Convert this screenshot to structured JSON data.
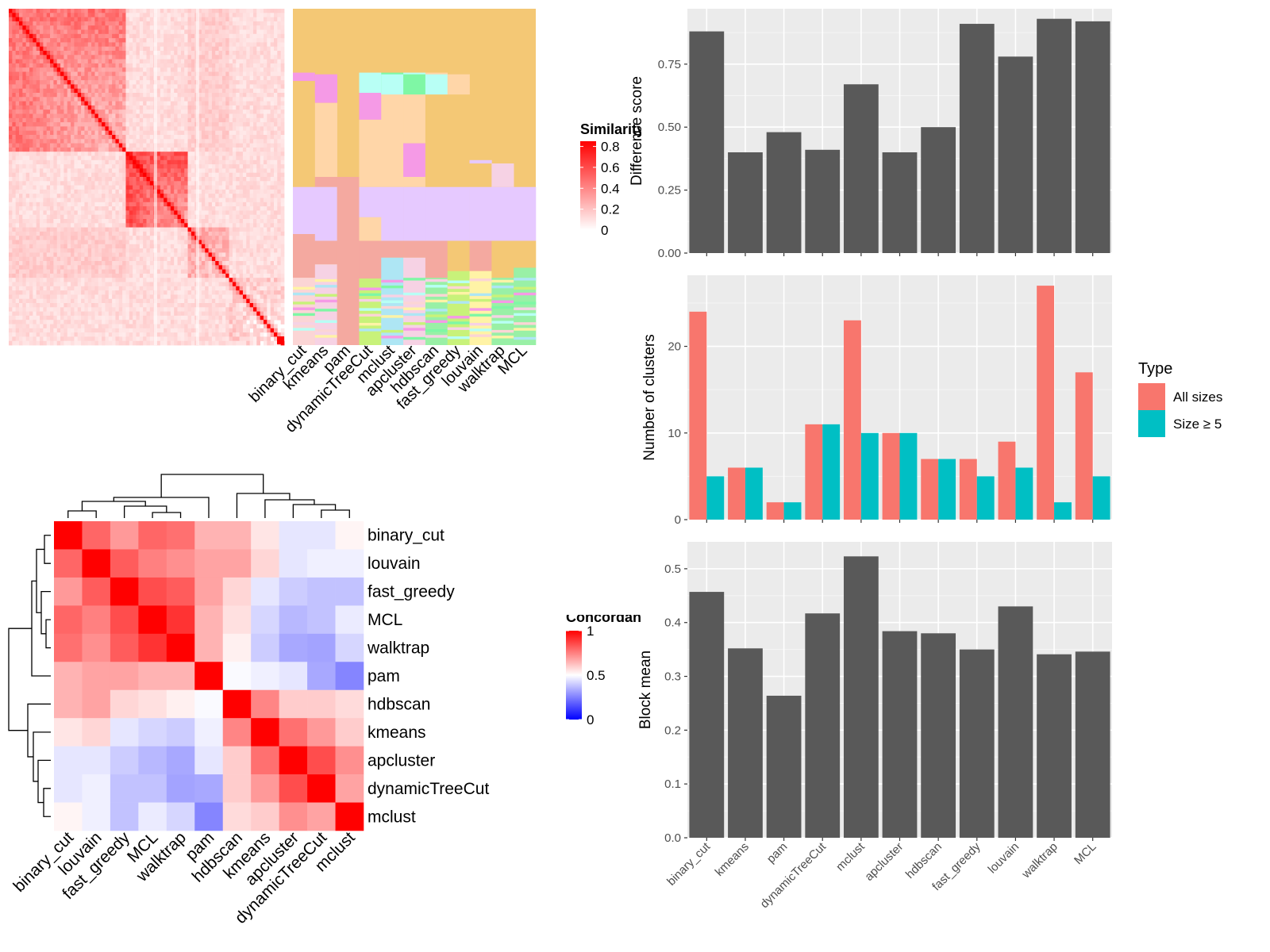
{
  "chart_data": [
    {
      "type": "heatmap",
      "panel": "similarity-heatmap-with-cluster-annotations",
      "columns": [
        "binary_cut",
        "kmeans",
        "pam",
        "dynamicTreeCut",
        "mclust",
        "apcluster",
        "hdbscan",
        "fast_greedy",
        "louvain",
        "walktrap",
        "MCL"
      ],
      "legend": {
        "title": "Similarity",
        "ticks": [
          "0.8",
          "0.6",
          "0.4",
          "0.2",
          "0"
        ]
      },
      "blocks": [
        {
          "start": 0.0,
          "end": 0.43,
          "intensity": 0.55
        },
        {
          "start": 0.43,
          "end": 0.65,
          "intensity": 0.7
        },
        {
          "start": 0.65,
          "end": 0.8,
          "intensity": 0.35
        },
        {
          "start": 0.8,
          "end": 1.0,
          "intensity": 0.2
        }
      ],
      "annotation_palette": [
        "#F4C875",
        "#E6C9FF",
        "#F4A9A0",
        "#FBD5D5",
        "#F6D2E4",
        "#C8F27A",
        "#99F0A6",
        "#AEE6F4",
        "#FFF3A6",
        "#F59AE6",
        "#B8FFF5",
        "#FFD6A8",
        "#7FF7A5"
      ]
    },
    {
      "type": "heatmap",
      "panel": "concordance-heatmap",
      "rows": [
        "binary_cut",
        "louvain",
        "fast_greedy",
        "MCL",
        "walktrap",
        "pam",
        "hdbscan",
        "kmeans",
        "apcluster",
        "dynamicTreeCut",
        "mclust"
      ],
      "columns": [
        "binary_cut",
        "louvain",
        "fast_greedy",
        "MCL",
        "walktrap",
        "pam",
        "hdbscan",
        "kmeans",
        "apcluster",
        "dynamicTreeCut",
        "mclust"
      ],
      "values": [
        [
          1.0,
          0.8,
          0.7,
          0.8,
          0.78,
          0.65,
          0.65,
          0.55,
          0.45,
          0.45,
          0.52
        ],
        [
          0.8,
          1.0,
          0.82,
          0.75,
          0.72,
          0.68,
          0.68,
          0.58,
          0.45,
          0.47,
          0.47
        ],
        [
          0.7,
          0.82,
          1.0,
          0.85,
          0.82,
          0.68,
          0.58,
          0.45,
          0.4,
          0.38,
          0.38
        ],
        [
          0.8,
          0.75,
          0.85,
          1.0,
          0.9,
          0.65,
          0.56,
          0.42,
          0.36,
          0.38,
          0.46
        ],
        [
          0.78,
          0.72,
          0.82,
          0.9,
          1.0,
          0.65,
          0.53,
          0.4,
          0.33,
          0.32,
          0.42
        ],
        [
          0.65,
          0.68,
          0.68,
          0.65,
          0.65,
          1.0,
          0.49,
          0.47,
          0.45,
          0.33,
          0.26
        ],
        [
          0.65,
          0.68,
          0.58,
          0.56,
          0.53,
          0.49,
          1.0,
          0.74,
          0.6,
          0.6,
          0.57
        ],
        [
          0.55,
          0.58,
          0.45,
          0.42,
          0.4,
          0.47,
          0.74,
          1.0,
          0.78,
          0.7,
          0.6
        ],
        [
          0.45,
          0.45,
          0.4,
          0.36,
          0.33,
          0.45,
          0.6,
          0.78,
          1.0,
          0.85,
          0.72
        ],
        [
          0.45,
          0.47,
          0.38,
          0.38,
          0.32,
          0.33,
          0.6,
          0.7,
          0.85,
          1.0,
          0.68
        ],
        [
          0.52,
          0.47,
          0.38,
          0.46,
          0.42,
          0.26,
          0.57,
          0.6,
          0.72,
          0.68,
          1.0
        ]
      ],
      "legend": {
        "title": "Concordance",
        "ticks": [
          "1",
          "0.5",
          "0"
        ]
      }
    },
    {
      "type": "bar",
      "panel": "difference-score",
      "categories": [
        "binary_cut",
        "kmeans",
        "pam",
        "dynamicTreeCut",
        "mclust",
        "apcluster",
        "hdbscan",
        "fast_greedy",
        "louvain",
        "walktrap",
        "MCL"
      ],
      "values": [
        0.88,
        0.4,
        0.48,
        0.41,
        0.67,
        0.4,
        0.5,
        0.91,
        0.78,
        0.93,
        0.92
      ],
      "ylabel": "Difference score",
      "ylim": [
        0,
        0.97
      ],
      "yticks": [
        "0.00",
        "0.25",
        "0.50",
        "0.75"
      ],
      "ytick_values": [
        0,
        0.25,
        0.5,
        0.75
      ]
    },
    {
      "type": "bar",
      "panel": "number-of-clusters",
      "categories": [
        "binary_cut",
        "kmeans",
        "pam",
        "dynamicTreeCut",
        "mclust",
        "apcluster",
        "hdbscan",
        "fast_greedy",
        "louvain",
        "walktrap",
        "MCL"
      ],
      "series": [
        {
          "name": "All sizes",
          "color": "#F8766D",
          "values": [
            24,
            6,
            2,
            11,
            23,
            10,
            7,
            7,
            9,
            27,
            17
          ]
        },
        {
          "name": "Size ≥ 5",
          "color": "#00BFC4",
          "values": [
            5,
            6,
            2,
            11,
            10,
            10,
            7,
            5,
            6,
            2,
            5
          ]
        }
      ],
      "ylabel": "Number of clusters",
      "ylim": [
        0,
        28.2
      ],
      "yticks": [
        "0",
        "10",
        "20"
      ],
      "ytick_values": [
        0,
        10,
        20
      ],
      "legend": {
        "title": "Type",
        "position": "right"
      }
    },
    {
      "type": "bar",
      "panel": "block-mean",
      "categories": [
        "binary_cut",
        "kmeans",
        "pam",
        "dynamicTreeCut",
        "mclust",
        "apcluster",
        "hdbscan",
        "fast_greedy",
        "louvain",
        "walktrap",
        "MCL"
      ],
      "values": [
        0.457,
        0.352,
        0.264,
        0.417,
        0.523,
        0.384,
        0.38,
        0.35,
        0.43,
        0.341,
        0.346
      ],
      "ylabel": "Block mean",
      "ylim": [
        0,
        0.55
      ],
      "yticks": [
        "0.0",
        "0.1",
        "0.2",
        "0.3",
        "0.4",
        "0.5"
      ],
      "ytick_values": [
        0,
        0.1,
        0.2,
        0.3,
        0.4,
        0.5
      ]
    }
  ]
}
